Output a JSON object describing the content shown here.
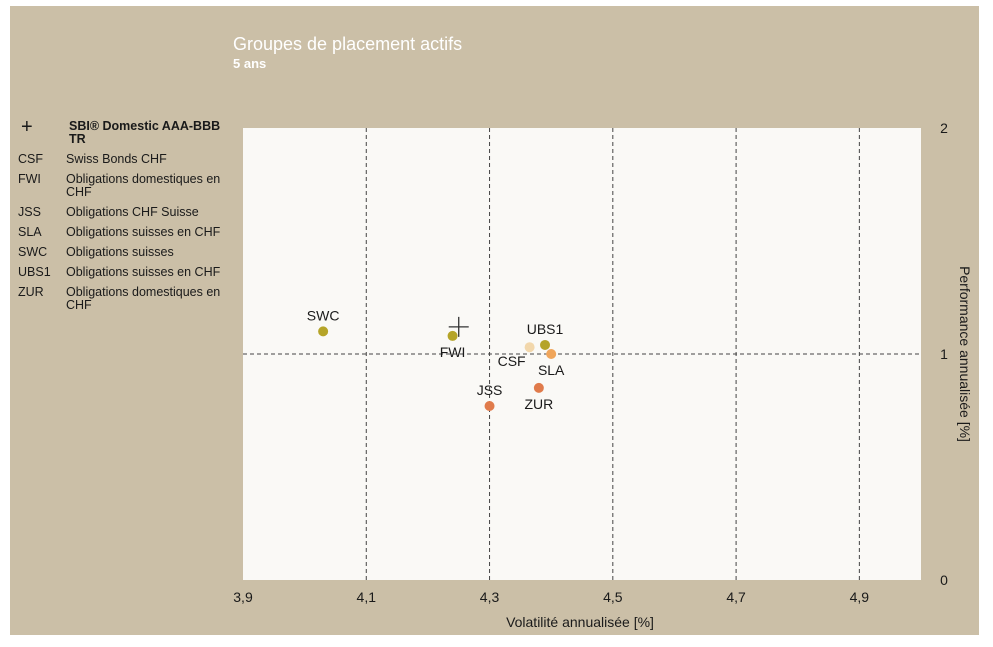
{
  "title": "Groupes de placement actifs",
  "subtitle": "5 ans",
  "legend": [
    {
      "code": "+",
      "label": "SBI® Domestic AAA-BBB TR",
      "benchmark": true
    },
    {
      "code": "CSF",
      "label": "Swiss Bonds CHF"
    },
    {
      "code": "FWI",
      "label": "Obligations domestiques en CHF"
    },
    {
      "code": "JSS",
      "label": "Obligations CHF Suisse"
    },
    {
      "code": "SLA",
      "label": "Obligations suisses en CHF"
    },
    {
      "code": "SWC",
      "label": "Obligations suisses"
    },
    {
      "code": "UBS1",
      "label": "Obligations suisses en CHF"
    },
    {
      "code": "ZUR",
      "label": "Obligations domestiques en CHF"
    }
  ],
  "colors": {
    "panel": "#cbbfa7",
    "plot_bg": "#faf9f6",
    "olive": "#b5a428",
    "orange": "#e07b4b",
    "peach": "#f0a55a",
    "cream": "#f2d7ab"
  },
  "chart_data": {
    "type": "scatter",
    "xlabel": "Volatilité annualisée [%]",
    "ylabel": "Performance annualisée [%]",
    "xlim": [
      3.9,
      5.0
    ],
    "ylim": [
      0,
      2
    ],
    "xticks": [
      "3,9",
      "4,1",
      "4,3",
      "4,5",
      "4,7",
      "4,9"
    ],
    "xtick_values": [
      3.9,
      4.1,
      4.3,
      4.5,
      4.7,
      4.9
    ],
    "yticks": [
      "0",
      "1",
      "2"
    ],
    "ytick_values": [
      0,
      1,
      2
    ],
    "grid": true,
    "benchmark": {
      "name": "SBI® Domestic AAA-BBB TR",
      "x": 4.25,
      "y": 1.12
    },
    "points": [
      {
        "label": "SWC",
        "x": 4.03,
        "y": 1.1,
        "color": "#b5a428",
        "label_pos": "above"
      },
      {
        "label": "FWI",
        "x": 4.24,
        "y": 1.08,
        "color": "#b5a428",
        "label_pos": "below"
      },
      {
        "label": "CSF",
        "x": 4.365,
        "y": 1.03,
        "color": "#f2d7ab",
        "label_pos": "below-left"
      },
      {
        "label": "UBS1",
        "x": 4.39,
        "y": 1.04,
        "color": "#b5a428",
        "label_pos": "above"
      },
      {
        "label": "SLA",
        "x": 4.4,
        "y": 1.0,
        "color": "#f0a55a",
        "label_pos": "below"
      },
      {
        "label": "JSS",
        "x": 4.3,
        "y": 0.77,
        "color": "#e07b4b",
        "label_pos": "above"
      },
      {
        "label": "ZUR",
        "x": 4.38,
        "y": 0.85,
        "color": "#e07b4b",
        "label_pos": "below"
      }
    ]
  }
}
